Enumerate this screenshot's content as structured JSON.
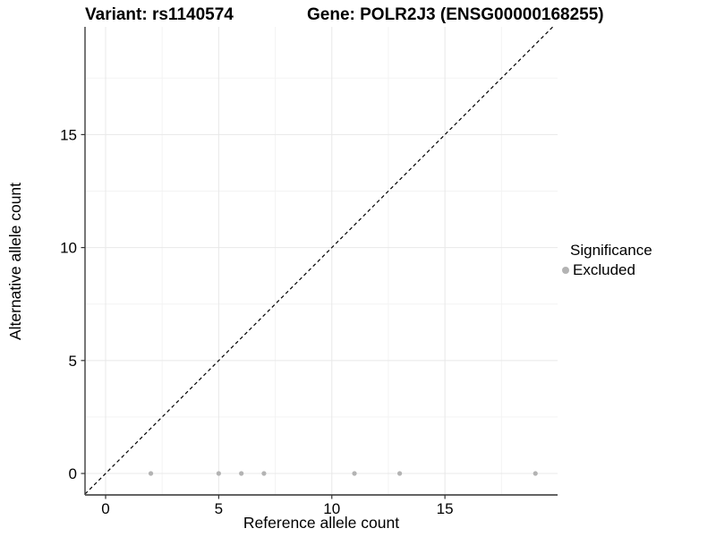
{
  "header": {
    "variant_title": "Variant: rs1140574",
    "gene_title": "Gene: POLR2J3 (ENSG00000168255)"
  },
  "chart_data": {
    "type": "scatter",
    "title_left": "Variant: rs1140574",
    "title_right": "Gene: POLR2J3 (ENSG00000168255)",
    "xlabel": "Reference allele count",
    "ylabel": "Alternative allele count",
    "xlim": [
      -0.91,
      19.98
    ],
    "ylim": [
      -0.95,
      19.77
    ],
    "xticks": [
      0,
      5,
      10,
      15
    ],
    "yticks": [
      0,
      5,
      10,
      15
    ],
    "xminor": [
      2.5,
      7.5,
      12.5,
      17.5
    ],
    "yminor": [
      2.5,
      7.5,
      12.5,
      17.5
    ],
    "grid": "major and minor gridlines, light gray on white panel",
    "series": [
      {
        "name": "Excluded",
        "color": "#b3b3b3",
        "points": [
          [
            2,
            0
          ],
          [
            5,
            0
          ],
          [
            6,
            0
          ],
          [
            7,
            0
          ],
          [
            11,
            0
          ],
          [
            13,
            0
          ],
          [
            19,
            0
          ]
        ]
      }
    ],
    "reference_line": {
      "type": "identity",
      "slope": 1,
      "intercept": 0,
      "style": "dashed",
      "color": "#000000"
    },
    "legend": {
      "title": "Significance",
      "position": "right",
      "entries": [
        {
          "label": "Excluded",
          "color": "#b3b3b3",
          "marker": "circle"
        }
      ]
    }
  },
  "style": {
    "grid_major_color": "#e8e8e8",
    "grid_minor_color": "#f3f3f3",
    "axis_line_color": "#3d3d3d",
    "bottom_axis_color": "#4d4d4d",
    "tick_color": "#333333",
    "text_color": "#000000",
    "point_radius": 2.6,
    "legend_dot_radius": 3.5
  }
}
